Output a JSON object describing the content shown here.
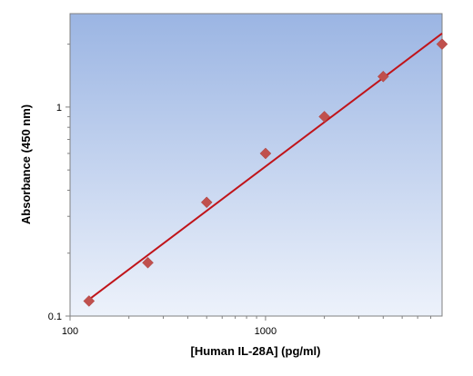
{
  "chart_data": {
    "type": "scatter",
    "title": "",
    "xlabel": "[Human IL-28A] (pg/ml)",
    "ylabel": "Absorbance (450 nm)",
    "x_scale": "log",
    "y_scale": "log",
    "xlim": [
      100,
      8000
    ],
    "ylim": [
      0.1,
      2.8
    ],
    "x_ticks": [
      {
        "value": 100,
        "label": "100"
      },
      {
        "value": 1000,
        "label": "1000"
      }
    ],
    "y_ticks": [
      {
        "value": 0.1,
        "label": "0.1"
      },
      {
        "value": 1,
        "label": "1"
      }
    ],
    "grid": false,
    "legend": "none",
    "series": [
      {
        "marker": "diamond",
        "x": [
          125,
          250,
          500,
          1000,
          2000,
          4000,
          8000
        ],
        "y": [
          0.118,
          0.18,
          0.35,
          0.6,
          0.9,
          1.4,
          2.0
        ]
      }
    ],
    "fit_line": {
      "x": [
        125,
        8000
      ],
      "y": [
        0.12,
        2.25
      ]
    },
    "colors": {
      "marker": "#c0504d",
      "fit_line": "#c0141a",
      "plot_bg_top": "#9bb5e3",
      "plot_bg_bottom": "#edf2fb",
      "plot_border": "#808080"
    }
  }
}
